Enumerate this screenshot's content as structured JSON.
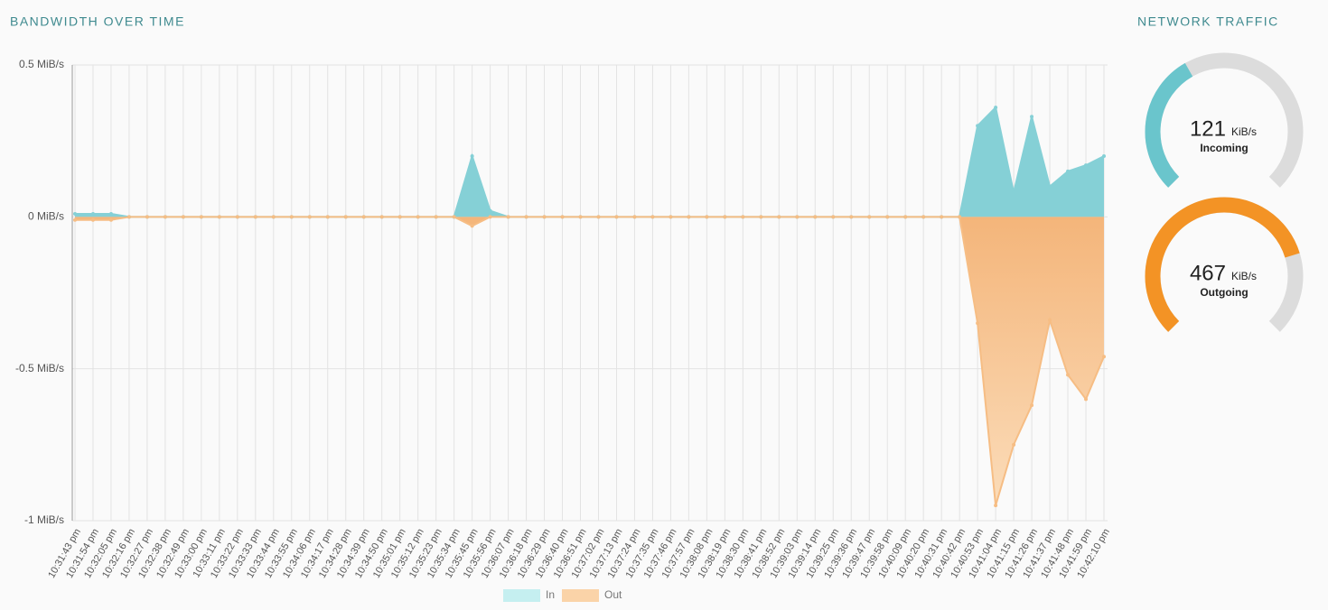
{
  "chart_data": [
    {
      "type": "area",
      "title": "BANDWIDTH OVER TIME",
      "categories": [
        "10:31:43 pm",
        "10:31:54 pm",
        "10:32:05 pm",
        "10:32:16 pm",
        "10:32:27 pm",
        "10:32:38 pm",
        "10:32:49 pm",
        "10:33:00 pm",
        "10:33:11 pm",
        "10:33:22 pm",
        "10:33:33 pm",
        "10:33:44 pm",
        "10:33:55 pm",
        "10:34:06 pm",
        "10:34:17 pm",
        "10:34:28 pm",
        "10:34:39 pm",
        "10:34:50 pm",
        "10:35:01 pm",
        "10:35:12 pm",
        "10:35:23 pm",
        "10:35:34 pm",
        "10:35:45 pm",
        "10:35:56 pm",
        "10:36:07 pm",
        "10:36:18 pm",
        "10:36:29 pm",
        "10:36:40 pm",
        "10:36:51 pm",
        "10:37:02 pm",
        "10:37:13 pm",
        "10:37:24 pm",
        "10:37:35 pm",
        "10:37:46 pm",
        "10:37:57 pm",
        "10:38:08 pm",
        "10:38:19 pm",
        "10:38:30 pm",
        "10:38:41 pm",
        "10:38:52 pm",
        "10:39:03 pm",
        "10:39:14 pm",
        "10:39:25 pm",
        "10:39:36 pm",
        "10:39:47 pm",
        "10:39:58 pm",
        "10:40:09 pm",
        "10:40:20 pm",
        "10:40:31 pm",
        "10:40:42 pm",
        "10:40:53 pm",
        "10:41:04 pm",
        "10:41:15 pm",
        "10:41:26 pm",
        "10:41:37 pm",
        "10:41:48 pm",
        "10:41:59 pm",
        "10:42:10 pm"
      ],
      "series": [
        {
          "name": "In",
          "color": "#85d0d6",
          "legend_color": "#c5eff0",
          "values": [
            0.01,
            0.01,
            0.01,
            0,
            0,
            0,
            0,
            0,
            0,
            0,
            0,
            0,
            0,
            0,
            0,
            0,
            0,
            0,
            0,
            0,
            0,
            0,
            0.2,
            0.02,
            0,
            0,
            0,
            0,
            0,
            0,
            0,
            0,
            0,
            0,
            0,
            0,
            0,
            0,
            0,
            0,
            0,
            0,
            0,
            0,
            0,
            0,
            0,
            0,
            0,
            0,
            0.3,
            0.36,
            0.08,
            0.33,
            0.1,
            0.15,
            0.17,
            0.2
          ]
        },
        {
          "name": "Out",
          "color": "#f6bd84",
          "legend_color": "#fad3a8",
          "values": [
            -0.01,
            -0.01,
            -0.01,
            0,
            0,
            0,
            0,
            0,
            0,
            0,
            0,
            0,
            0,
            0,
            0,
            0,
            0,
            0,
            0,
            0,
            0,
            0,
            -0.03,
            0,
            0,
            0,
            0,
            0,
            0,
            0,
            0,
            0,
            0,
            0,
            0,
            0,
            0,
            0,
            0,
            0,
            0,
            0,
            0,
            0,
            0,
            0,
            0,
            0,
            0,
            0,
            -0.35,
            -0.95,
            -0.75,
            -0.62,
            -0.34,
            -0.52,
            -0.6,
            -0.46
          ]
        }
      ],
      "ylim": [
        -1,
        0.5
      ],
      "yticks": [
        {
          "value": 0.5,
          "label": "0.5 MiB/s"
        },
        {
          "value": 0,
          "label": "0 MiB/s"
        },
        {
          "value": -0.5,
          "label": "-0.5 MiB/s"
        },
        {
          "value": -1,
          "label": "-1 MiB/s"
        }
      ],
      "grid": true,
      "legend": "bottom"
    },
    {
      "type": "gauge",
      "title": "NETWORK TRAFFIC",
      "gauges": [
        {
          "value": 121,
          "unit": "KiB/s",
          "label": "Incoming",
          "color": "#6ac5cc",
          "lim": [
            0,
            310
          ]
        },
        {
          "value": 467,
          "unit": "KiB/s",
          "label": "Outgoing",
          "color": "#f39325",
          "lim": [
            0,
            606
          ]
        }
      ]
    }
  ]
}
